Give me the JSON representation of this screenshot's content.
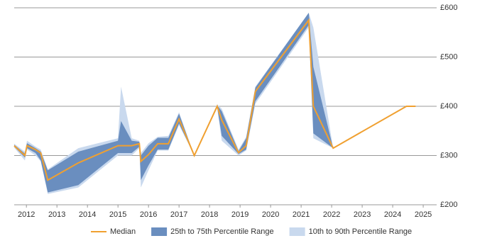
{
  "chart_data": {
    "type": "line",
    "x": [
      2011.6,
      2011.95,
      2012.02,
      2012.3,
      2012.47,
      2012.7,
      2013.7,
      2015.0,
      2015.1,
      2015.45,
      2015.7,
      2015.75,
      2016.0,
      2016.3,
      2016.65,
      2017.0,
      2017.5,
      2018.25,
      2018.4,
      2018.95,
      2019.2,
      2019.5,
      2021.25,
      2021.4,
      2022.05,
      2024.45,
      2024.75
    ],
    "series": [
      {
        "name": "Median",
        "color": "#f0a030",
        "values": [
          320,
          300,
          320,
          312,
          305,
          250,
          285,
          320,
          320,
          320,
          324,
          288,
          302,
          324,
          324,
          374,
          300,
          400,
          372,
          306,
          320,
          430,
          575,
          400,
          315,
          400,
          400
        ]
      },
      {
        "name": "25th to 75th Percentile Range",
        "color": "#6a8ebf",
        "low": [
          318,
          296,
          315,
          305,
          290,
          225,
          240,
          305,
          305,
          305,
          318,
          250,
          280,
          312,
          312,
          365,
          300,
          398,
          340,
          303,
          312,
          410,
          565,
          345,
          315,
          null,
          null
        ],
        "high": [
          322,
          304,
          325,
          315,
          308,
          270,
          308,
          330,
          370,
          330,
          328,
          300,
          320,
          336,
          336,
          385,
          300,
          402,
          390,
          309,
          335,
          438,
          590,
          480,
          315,
          null,
          null
        ]
      },
      {
        "name": "10th to 90th Percentile Range",
        "color": "#c9d9ee",
        "low": [
          316,
          290,
          312,
          300,
          288,
          222,
          235,
          300,
          300,
          300,
          315,
          235,
          270,
          310,
          310,
          362,
          300,
          396,
          330,
          300,
          310,
          405,
          560,
          335,
          315,
          null,
          null
        ],
        "high": [
          324,
          308,
          330,
          318,
          312,
          272,
          315,
          335,
          440,
          335,
          330,
          305,
          325,
          338,
          340,
          388,
          300,
          404,
          395,
          312,
          338,
          440,
          590,
          560,
          315,
          null,
          null
        ]
      }
    ],
    "xlim": [
      2011.6,
      2025.44
    ],
    "xticks": [
      2012,
      2013,
      2014,
      2015,
      2016,
      2017,
      2018,
      2019,
      2020,
      2021,
      2022,
      2023,
      2024,
      2025
    ],
    "ylim": [
      200,
      600
    ],
    "yticks": [
      {
        "value": 200,
        "label": "£200"
      },
      {
        "value": 300,
        "label": "£300"
      },
      {
        "value": 400,
        "label": "£400"
      },
      {
        "value": 500,
        "label": "£500"
      },
      {
        "value": 600,
        "label": "£600"
      }
    ],
    "grid": true,
    "legend": "bottom"
  }
}
